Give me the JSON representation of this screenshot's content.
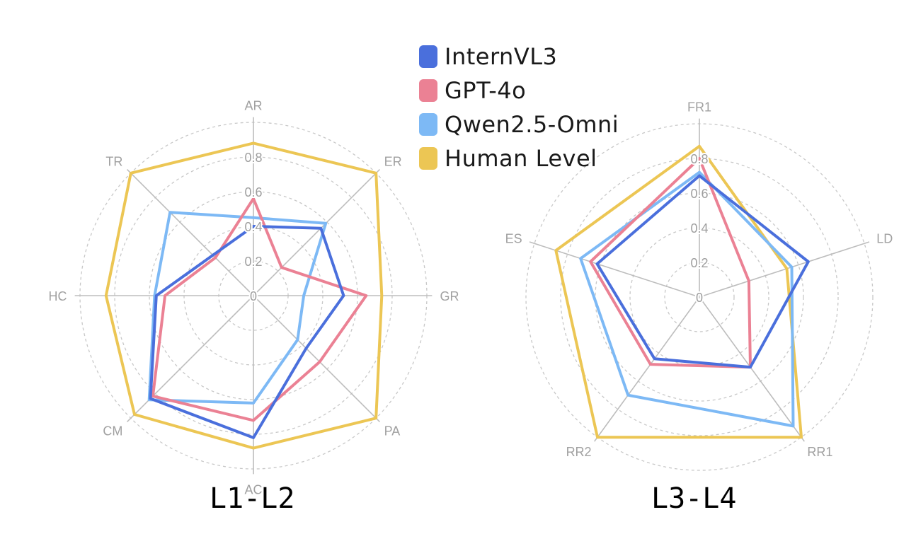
{
  "legend": [
    {
      "name": "InternVL3",
      "color": "#4a6fdc"
    },
    {
      "name": "GPT-4o",
      "color": "#eb8194"
    },
    {
      "name": "Qwen2.5-Omni",
      "color": "#7db9f5"
    },
    {
      "name": "Human Level",
      "color": "#ecc654"
    }
  ],
  "chart_data": [
    {
      "type": "radar",
      "title": "L1-L2",
      "axes": [
        "AR",
        "ER",
        "GR",
        "PA",
        "AC",
        "CM",
        "HC",
        "TR"
      ],
      "rings": [
        0,
        0.2,
        0.4,
        0.6,
        0.8
      ],
      "range": [
        0,
        1
      ],
      "series": [
        {
          "name": "InternVL3",
          "values": [
            0.4,
            0.55,
            0.52,
            0.43,
            0.82,
            0.84,
            0.56,
            0.33
          ]
        },
        {
          "name": "GPT-4o",
          "values": [
            0.56,
            0.23,
            0.65,
            0.54,
            0.72,
            0.82,
            0.51,
            0.31
          ]
        },
        {
          "name": "Qwen2.5-Omni",
          "values": [
            0.45,
            0.59,
            0.29,
            0.36,
            0.62,
            0.85,
            0.57,
            0.68
          ]
        },
        {
          "name": "Human Level",
          "values": [
            0.88,
            1.0,
            0.74,
            1.0,
            0.88,
            0.97,
            0.85,
            1.0
          ]
        }
      ]
    },
    {
      "type": "radar",
      "title": "L3-L4",
      "axes": [
        "FR1",
        "LD",
        "RR1",
        "RR2",
        "ES"
      ],
      "rings": [
        0,
        0.2,
        0.4,
        0.6,
        0.8
      ],
      "range": [
        0,
        1
      ],
      "series": [
        {
          "name": "InternVL3",
          "values": [
            0.7,
            0.66,
            0.5,
            0.44,
            0.62
          ]
        },
        {
          "name": "GPT-4o",
          "values": [
            0.8,
            0.3,
            0.5,
            0.48,
            0.66
          ]
        },
        {
          "name": "Qwen2.5-Omni",
          "values": [
            0.72,
            0.56,
            0.92,
            0.7,
            0.72
          ]
        },
        {
          "name": "Human Level",
          "values": [
            0.87,
            0.53,
            1.0,
            1.0,
            0.87
          ]
        }
      ]
    }
  ]
}
